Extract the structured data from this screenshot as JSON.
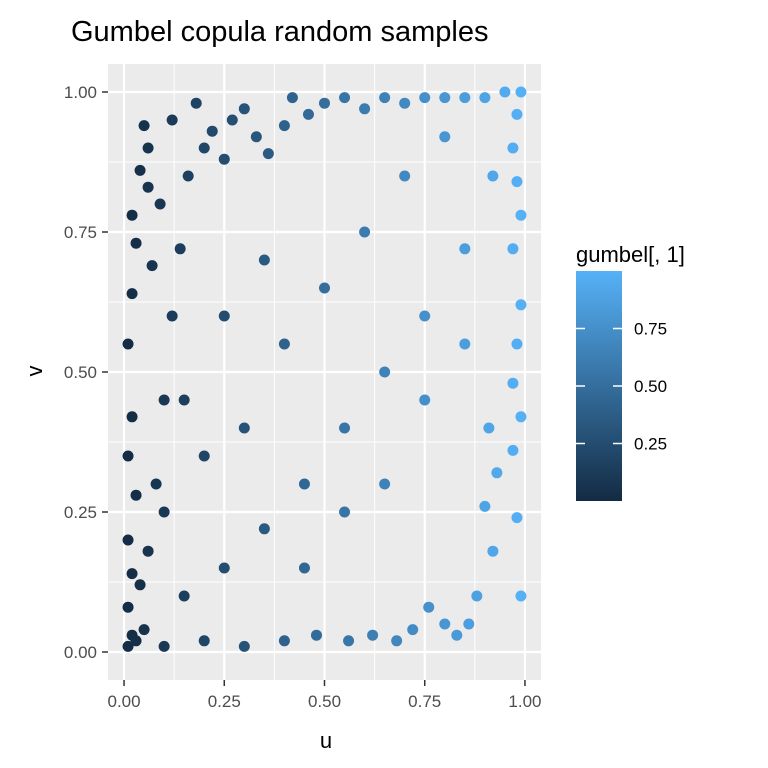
{
  "chart_data": {
    "type": "scatter",
    "title": "Gumbel copula random samples",
    "xlabel": "u",
    "ylabel": "v",
    "xlim": [
      -0.04,
      1.04
    ],
    "ylim": [
      -0.05,
      1.05
    ],
    "x_ticks": [
      {
        "value": 0.0,
        "label": "0.00"
      },
      {
        "value": 0.25,
        "label": "0.25"
      },
      {
        "value": 0.5,
        "label": "0.50"
      },
      {
        "value": 0.75,
        "label": "0.75"
      },
      {
        "value": 1.0,
        "label": "1.00"
      }
    ],
    "y_ticks": [
      {
        "value": 0.0,
        "label": "0.00"
      },
      {
        "value": 0.25,
        "label": "0.25"
      },
      {
        "value": 0.5,
        "label": "0.50"
      },
      {
        "value": 0.75,
        "label": "0.75"
      },
      {
        "value": 1.0,
        "label": "1.00"
      }
    ],
    "grid": true,
    "color_mapping": {
      "variable": "gumbel[, 1]",
      "range": [
        0.0,
        1.0
      ],
      "low_color": "#132B43",
      "high_color": "#56B1F7",
      "legend_ticks": [
        {
          "value": 0.25,
          "label": "0.25"
        },
        {
          "value": 0.5,
          "label": "0.50"
        },
        {
          "value": 0.75,
          "label": "0.75"
        }
      ],
      "legend_placement": "right"
    },
    "points": [
      [
        0.05,
        0.94
      ],
      [
        0.06,
        0.9
      ],
      [
        0.12,
        0.95
      ],
      [
        0.18,
        0.98
      ],
      [
        0.04,
        0.86
      ],
      [
        0.06,
        0.83
      ],
      [
        0.09,
        0.8
      ],
      [
        0.02,
        0.78
      ],
      [
        0.03,
        0.73
      ],
      [
        0.07,
        0.69
      ],
      [
        0.02,
        0.64
      ],
      [
        0.01,
        0.55
      ],
      [
        0.02,
        0.42
      ],
      [
        0.01,
        0.35
      ],
      [
        0.03,
        0.28
      ],
      [
        0.01,
        0.2
      ],
      [
        0.02,
        0.14
      ],
      [
        0.01,
        0.08
      ],
      [
        0.02,
        0.03
      ],
      [
        0.01,
        0.01
      ],
      [
        0.03,
        0.02
      ],
      [
        0.05,
        0.04
      ],
      [
        0.04,
        0.12
      ],
      [
        0.06,
        0.18
      ],
      [
        0.08,
        0.3
      ],
      [
        0.1,
        0.45
      ],
      [
        0.12,
        0.6
      ],
      [
        0.14,
        0.72
      ],
      [
        0.16,
        0.85
      ],
      [
        0.2,
        0.9
      ],
      [
        0.22,
        0.93
      ],
      [
        0.25,
        0.88
      ],
      [
        0.27,
        0.95
      ],
      [
        0.3,
        0.97
      ],
      [
        0.33,
        0.92
      ],
      [
        0.36,
        0.89
      ],
      [
        0.4,
        0.94
      ],
      [
        0.42,
        0.99
      ],
      [
        0.46,
        0.96
      ],
      [
        0.5,
        0.98
      ],
      [
        0.55,
        0.99
      ],
      [
        0.6,
        0.97
      ],
      [
        0.65,
        0.99
      ],
      [
        0.7,
        0.98
      ],
      [
        0.75,
        0.99
      ],
      [
        0.8,
        0.99
      ],
      [
        0.85,
        0.99
      ],
      [
        0.9,
        0.99
      ],
      [
        0.95,
        1.0
      ],
      [
        0.99,
        1.0
      ],
      [
        0.98,
        0.96
      ],
      [
        0.97,
        0.9
      ],
      [
        0.98,
        0.84
      ],
      [
        0.99,
        0.78
      ],
      [
        0.97,
        0.72
      ],
      [
        0.99,
        0.62
      ],
      [
        0.98,
        0.55
      ],
      [
        0.97,
        0.48
      ],
      [
        0.99,
        0.42
      ],
      [
        0.97,
        0.36
      ],
      [
        0.98,
        0.24
      ],
      [
        0.99,
        0.1
      ],
      [
        0.92,
        0.18
      ],
      [
        0.9,
        0.26
      ],
      [
        0.93,
        0.32
      ],
      [
        0.91,
        0.4
      ],
      [
        0.88,
        0.1
      ],
      [
        0.86,
        0.05
      ],
      [
        0.83,
        0.03
      ],
      [
        0.8,
        0.05
      ],
      [
        0.76,
        0.08
      ],
      [
        0.72,
        0.04
      ],
      [
        0.68,
        0.02
      ],
      [
        0.62,
        0.03
      ],
      [
        0.56,
        0.02
      ],
      [
        0.48,
        0.03
      ],
      [
        0.4,
        0.02
      ],
      [
        0.3,
        0.01
      ],
      [
        0.2,
        0.02
      ],
      [
        0.1,
        0.01
      ],
      [
        0.15,
        0.1
      ],
      [
        0.25,
        0.15
      ],
      [
        0.35,
        0.22
      ],
      [
        0.45,
        0.3
      ],
      [
        0.55,
        0.4
      ],
      [
        0.65,
        0.5
      ],
      [
        0.75,
        0.6
      ],
      [
        0.85,
        0.72
      ],
      [
        0.92,
        0.85
      ],
      [
        0.3,
        0.4
      ],
      [
        0.2,
        0.35
      ],
      [
        0.4,
        0.55
      ],
      [
        0.5,
        0.65
      ],
      [
        0.6,
        0.75
      ],
      [
        0.7,
        0.85
      ],
      [
        0.8,
        0.92
      ],
      [
        0.45,
        0.15
      ],
      [
        0.55,
        0.25
      ],
      [
        0.65,
        0.3
      ],
      [
        0.75,
        0.45
      ],
      [
        0.85,
        0.55
      ],
      [
        0.35,
        0.7
      ],
      [
        0.25,
        0.6
      ],
      [
        0.15,
        0.45
      ],
      [
        0.1,
        0.25
      ]
    ]
  }
}
